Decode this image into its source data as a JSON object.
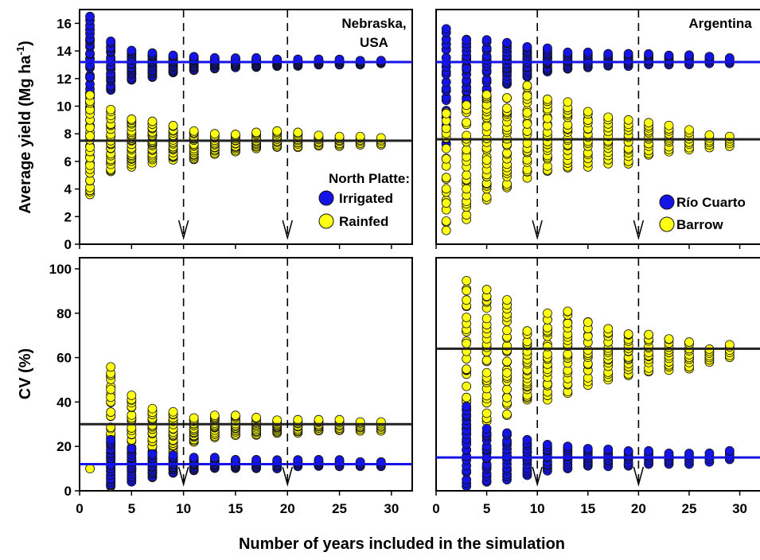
{
  "figure": {
    "xlabel": "Number of years included in the simulation"
  },
  "chart_data": [
    {
      "id": "nebraska_yield",
      "type": "scatter",
      "location_label_lines": [
        "Nebraska,",
        "USA"
      ],
      "ylabel_main": "Average yield (Mg ha",
      "ylabel_sup": "-1",
      "ylabel_close": ")",
      "xlim": [
        0,
        32
      ],
      "ylim": [
        0,
        17
      ],
      "yticks": [
        0,
        2,
        4,
        6,
        8,
        10,
        12,
        14,
        16
      ],
      "xticks": [],
      "x_divider_years": [
        10,
        20
      ],
      "legend_title": "North Platte:",
      "legend_position": "bottom-right",
      "series": [
        {
          "name": "Irrigated",
          "color": "#1414e6",
          "points_by_x": [
            {
              "x": 1,
              "min": 9.7,
              "max": 16.5,
              "n": 30
            },
            {
              "x": 3,
              "min": 11.1,
              "max": 14.7,
              "n": 24
            },
            {
              "x": 5,
              "min": 11.9,
              "max": 14.1,
              "n": 22
            },
            {
              "x": 7,
              "min": 12.1,
              "max": 13.9,
              "n": 20
            },
            {
              "x": 9,
              "min": 12.4,
              "max": 13.7,
              "n": 18
            },
            {
              "x": 11,
              "min": 12.6,
              "max": 13.6,
              "n": 14
            },
            {
              "x": 13,
              "min": 12.7,
              "max": 13.5,
              "n": 12
            },
            {
              "x": 15,
              "min": 12.8,
              "max": 13.5,
              "n": 10
            },
            {
              "x": 17,
              "min": 12.8,
              "max": 13.5,
              "n": 10
            },
            {
              "x": 19,
              "min": 12.9,
              "max": 13.4,
              "n": 9
            },
            {
              "x": 21,
              "min": 12.9,
              "max": 13.4,
              "n": 8
            },
            {
              "x": 23,
              "min": 13.0,
              "max": 13.4,
              "n": 7
            },
            {
              "x": 25,
              "min": 13.0,
              "max": 13.4,
              "n": 6
            },
            {
              "x": 27,
              "min": 13.0,
              "max": 13.3,
              "n": 5
            },
            {
              "x": 29,
              "min": 13.1,
              "max": 13.3,
              "n": 4
            }
          ]
        },
        {
          "name": "Rainfed",
          "color": "#ffff14",
          "points_by_x": [
            {
              "x": 1,
              "min": 3.6,
              "max": 10.8,
              "n": 30
            },
            {
              "x": 3,
              "min": 5.2,
              "max": 9.8,
              "n": 26
            },
            {
              "x": 5,
              "min": 5.6,
              "max": 9.1,
              "n": 24
            },
            {
              "x": 7,
              "min": 5.9,
              "max": 8.9,
              "n": 22
            },
            {
              "x": 9,
              "min": 6.1,
              "max": 8.6,
              "n": 20
            },
            {
              "x": 11,
              "min": 6.1,
              "max": 8.2,
              "n": 18
            },
            {
              "x": 13,
              "min": 6.5,
              "max": 8.0,
              "n": 14
            },
            {
              "x": 15,
              "min": 6.7,
              "max": 8.0,
              "n": 13
            },
            {
              "x": 17,
              "min": 6.9,
              "max": 8.1,
              "n": 12
            },
            {
              "x": 19,
              "min": 7.0,
              "max": 8.2,
              "n": 11
            },
            {
              "x": 21,
              "min": 7.0,
              "max": 8.1,
              "n": 10
            },
            {
              "x": 23,
              "min": 7.1,
              "max": 7.9,
              "n": 8
            },
            {
              "x": 25,
              "min": 7.1,
              "max": 7.8,
              "n": 7
            },
            {
              "x": 27,
              "min": 7.2,
              "max": 7.8,
              "n": 6
            },
            {
              "x": 29,
              "min": 7.2,
              "max": 7.7,
              "n": 5
            }
          ]
        }
      ],
      "hlines": [
        {
          "value": 13.2,
          "color": "#1414e6"
        },
        {
          "value": 7.5,
          "color": "#222222"
        }
      ]
    },
    {
      "id": "argentina_yield",
      "type": "scatter",
      "location_label_lines": [
        "Argentina"
      ],
      "xlim": [
        0,
        32
      ],
      "ylim": [
        0,
        17
      ],
      "yticks": [],
      "xticks": [],
      "x_divider_years": [
        10,
        20
      ],
      "legend_position": "bottom-right",
      "series": [
        {
          "name": "Río Cuarto",
          "color": "#1414e6",
          "points_by_x": [
            {
              "x": 1,
              "min": 7.0,
              "max": 15.8,
              "n": 26
            },
            {
              "x": 3,
              "min": 9.4,
              "max": 14.9,
              "n": 26
            },
            {
              "x": 5,
              "min": 10.0,
              "max": 14.8,
              "n": 24
            },
            {
              "x": 7,
              "min": 11.6,
              "max": 14.6,
              "n": 22
            },
            {
              "x": 9,
              "min": 12.1,
              "max": 14.3,
              "n": 20
            },
            {
              "x": 11,
              "min": 12.5,
              "max": 14.2,
              "n": 16
            },
            {
              "x": 13,
              "min": 12.7,
              "max": 13.9,
              "n": 12
            },
            {
              "x": 15,
              "min": 12.8,
              "max": 13.9,
              "n": 11
            },
            {
              "x": 17,
              "min": 12.9,
              "max": 13.8,
              "n": 10
            },
            {
              "x": 19,
              "min": 12.9,
              "max": 13.8,
              "n": 9
            },
            {
              "x": 21,
              "min": 13.0,
              "max": 13.8,
              "n": 8
            },
            {
              "x": 23,
              "min": 13.0,
              "max": 13.7,
              "n": 7
            },
            {
              "x": 25,
              "min": 13.0,
              "max": 13.7,
              "n": 6
            },
            {
              "x": 27,
              "min": 13.1,
              "max": 13.6,
              "n": 5
            },
            {
              "x": 29,
              "min": 13.1,
              "max": 13.5,
              "n": 4
            }
          ]
        },
        {
          "name": "Barrow",
          "color": "#ffff14",
          "points_by_x": [
            {
              "x": 1,
              "min": 1.0,
              "max": 9.7,
              "n": 20
            },
            {
              "x": 3,
              "min": 1.8,
              "max": 10.4,
              "n": 28
            },
            {
              "x": 5,
              "min": 3.2,
              "max": 11.0,
              "n": 28
            },
            {
              "x": 7,
              "min": 4.1,
              "max": 10.6,
              "n": 26
            },
            {
              "x": 9,
              "min": 4.8,
              "max": 11.5,
              "n": 24
            },
            {
              "x": 11,
              "min": 5.3,
              "max": 10.5,
              "n": 22
            },
            {
              "x": 13,
              "min": 5.5,
              "max": 10.3,
              "n": 20
            },
            {
              "x": 15,
              "min": 5.6,
              "max": 9.6,
              "n": 18
            },
            {
              "x": 17,
              "min": 5.8,
              "max": 9.2,
              "n": 16
            },
            {
              "x": 19,
              "min": 5.8,
              "max": 9.0,
              "n": 14
            },
            {
              "x": 21,
              "min": 6.4,
              "max": 8.9,
              "n": 12
            },
            {
              "x": 23,
              "min": 6.7,
              "max": 8.6,
              "n": 10
            },
            {
              "x": 25,
              "min": 6.8,
              "max": 8.3,
              "n": 8
            },
            {
              "x": 27,
              "min": 7.0,
              "max": 7.9,
              "n": 6
            },
            {
              "x": 29,
              "min": 7.1,
              "max": 7.8,
              "n": 5
            }
          ]
        }
      ],
      "hlines": [
        {
          "value": 13.2,
          "color": "#1414e6"
        },
        {
          "value": 7.6,
          "color": "#222222"
        }
      ]
    },
    {
      "id": "nebraska_cv",
      "type": "scatter",
      "ylabel": "CV (%)",
      "xlim": [
        0,
        32
      ],
      "ylim": [
        0,
        105
      ],
      "yticks": [
        0,
        20,
        40,
        60,
        80,
        100
      ],
      "xticks": [
        0,
        5,
        10,
        15,
        20,
        25,
        30
      ],
      "x_divider_years": [
        10,
        20
      ],
      "series": [
        {
          "name": "Rainfed",
          "color": "#ffff14",
          "points_by_x": [
            {
              "x": 1,
              "min": 10,
              "max": 10,
              "n": 1
            },
            {
              "x": 3,
              "min": 2,
              "max": 57,
              "n": 30
            },
            {
              "x": 5,
              "min": 9,
              "max": 43,
              "n": 28
            },
            {
              "x": 7,
              "min": 14,
              "max": 37,
              "n": 24
            },
            {
              "x": 9,
              "min": 17,
              "max": 36,
              "n": 22
            },
            {
              "x": 11,
              "min": 22,
              "max": 33,
              "n": 18
            },
            {
              "x": 13,
              "min": 24,
              "max": 34,
              "n": 16
            },
            {
              "x": 15,
              "min": 25,
              "max": 34,
              "n": 14
            },
            {
              "x": 17,
              "min": 25,
              "max": 33,
              "n": 13
            },
            {
              "x": 19,
              "min": 26,
              "max": 32,
              "n": 12
            },
            {
              "x": 21,
              "min": 26,
              "max": 32,
              "n": 10
            },
            {
              "x": 23,
              "min": 27,
              "max": 32,
              "n": 9
            },
            {
              "x": 25,
              "min": 27,
              "max": 32,
              "n": 8
            },
            {
              "x": 27,
              "min": 27,
              "max": 31,
              "n": 7
            },
            {
              "x": 29,
              "min": 27,
              "max": 31,
              "n": 6
            }
          ]
        },
        {
          "name": "Irrigated",
          "color": "#1414e6",
          "points_by_x": [
            {
              "x": 3,
              "min": 2,
              "max": 23,
              "n": 22
            },
            {
              "x": 5,
              "min": 4,
              "max": 19,
              "n": 18
            },
            {
              "x": 7,
              "min": 6,
              "max": 17,
              "n": 16
            },
            {
              "x": 9,
              "min": 8,
              "max": 16,
              "n": 14
            },
            {
              "x": 11,
              "min": 9,
              "max": 15,
              "n": 12
            },
            {
              "x": 13,
              "min": 10,
              "max": 15,
              "n": 10
            },
            {
              "x": 15,
              "min": 10,
              "max": 14,
              "n": 9
            },
            {
              "x": 17,
              "min": 10,
              "max": 14,
              "n": 8
            },
            {
              "x": 19,
              "min": 10,
              "max": 14,
              "n": 7
            },
            {
              "x": 21,
              "min": 11,
              "max": 14,
              "n": 6
            },
            {
              "x": 23,
              "min": 11,
              "max": 14,
              "n": 6
            },
            {
              "x": 25,
              "min": 11,
              "max": 14,
              "n": 5
            },
            {
              "x": 27,
              "min": 11,
              "max": 13,
              "n": 4
            },
            {
              "x": 29,
              "min": 11,
              "max": 13,
              "n": 4
            }
          ]
        }
      ],
      "hlines": [
        {
          "value": 30,
          "color": "#222222"
        },
        {
          "value": 12,
          "color": "#1414e6"
        }
      ]
    },
    {
      "id": "argentina_cv",
      "type": "scatter",
      "xlim": [
        0,
        32
      ],
      "ylim": [
        0,
        105
      ],
      "yticks": [],
      "xticks": [
        0,
        5,
        10,
        15,
        20,
        25,
        30
      ],
      "x_divider_years": [
        10,
        20
      ],
      "series": [
        {
          "name": "Barrow",
          "color": "#ffff14",
          "points_by_x": [
            {
              "x": 3,
              "min": 22,
              "max": 95,
              "n": 30
            },
            {
              "x": 5,
              "min": 30,
              "max": 91,
              "n": 30
            },
            {
              "x": 7,
              "min": 34,
              "max": 86,
              "n": 28
            },
            {
              "x": 9,
              "min": 40,
              "max": 72,
              "n": 26
            },
            {
              "x": 11,
              "min": 41,
              "max": 80,
              "n": 24
            },
            {
              "x": 13,
              "min": 44,
              "max": 82,
              "n": 22
            },
            {
              "x": 15,
              "min": 47,
              "max": 77,
              "n": 20
            },
            {
              "x": 17,
              "min": 50,
              "max": 73,
              "n": 18
            },
            {
              "x": 19,
              "min": 52,
              "max": 71,
              "n": 16
            },
            {
              "x": 21,
              "min": 53,
              "max": 71,
              "n": 14
            },
            {
              "x": 23,
              "min": 54,
              "max": 69,
              "n": 12
            },
            {
              "x": 25,
              "min": 55,
              "max": 67,
              "n": 10
            },
            {
              "x": 27,
              "min": 58,
              "max": 64,
              "n": 7
            },
            {
              "x": 29,
              "min": 60,
              "max": 66,
              "n": 6
            }
          ]
        },
        {
          "name": "Río Cuarto",
          "color": "#1414e6",
          "points_by_x": [
            {
              "x": 3,
              "min": 2,
              "max": 38,
              "n": 20
            },
            {
              "x": 5,
              "min": 4,
              "max": 28,
              "n": 18
            },
            {
              "x": 7,
              "min": 5,
              "max": 26,
              "n": 16
            },
            {
              "x": 9,
              "min": 7,
              "max": 23,
              "n": 14
            },
            {
              "x": 11,
              "min": 9,
              "max": 21,
              "n": 12
            },
            {
              "x": 13,
              "min": 10,
              "max": 20,
              "n": 11
            },
            {
              "x": 15,
              "min": 11,
              "max": 19,
              "n": 10
            },
            {
              "x": 17,
              "min": 11,
              "max": 19,
              "n": 9
            },
            {
              "x": 19,
              "min": 11,
              "max": 18,
              "n": 8
            },
            {
              "x": 21,
              "min": 12,
              "max": 18,
              "n": 7
            },
            {
              "x": 23,
              "min": 12,
              "max": 17,
              "n": 6
            },
            {
              "x": 25,
              "min": 12,
              "max": 17,
              "n": 5
            },
            {
              "x": 27,
              "min": 13,
              "max": 17,
              "n": 4
            },
            {
              "x": 29,
              "min": 14,
              "max": 18,
              "n": 4
            }
          ]
        }
      ],
      "hlines": [
        {
          "value": 64,
          "color": "#222222"
        },
        {
          "value": 15,
          "color": "#1414e6"
        }
      ]
    }
  ]
}
